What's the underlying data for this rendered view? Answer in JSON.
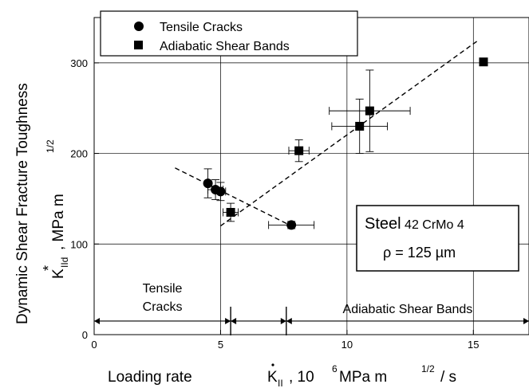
{
  "chart_data": {
    "type": "scatter",
    "xlabel_parts": [
      "Loading rate",
      "K",
      "II",
      ",  10",
      "6",
      " MPa m",
      "1/2",
      " / s"
    ],
    "ylabel_parts": [
      "Dynamic Shear Fracture Toughness",
      "K",
      "*",
      "IId",
      " ,   MPa m",
      "1/2"
    ],
    "xlim": [
      0,
      17.2
    ],
    "ylim": [
      0,
      350
    ],
    "x_ticks": [
      0,
      5,
      10,
      15
    ],
    "x_tick_labels": [
      "0",
      "5",
      "10",
      "15"
    ],
    "y_ticks": [
      0,
      100,
      200,
      300
    ],
    "y_tick_labels": [
      "0",
      "100",
      "200",
      "300"
    ],
    "grid": true,
    "legend_position": "top-left",
    "series": [
      {
        "name": "Tensile Cracks",
        "marker": "circle",
        "points": [
          {
            "x": 4.5,
            "y": 167,
            "yerr": 16
          },
          {
            "x": 4.8,
            "y": 160,
            "xerr": 0.3,
            "yerr": 11
          },
          {
            "x": 5.0,
            "y": 158,
            "xerr": 0.2,
            "yerr": 10
          },
          {
            "x": 7.8,
            "y": 121,
            "xerr": 0.9,
            "yerr": 4
          }
        ]
      },
      {
        "name": "Adiabatic Shear Bands",
        "marker": "square",
        "points": [
          {
            "x": 5.4,
            "y": 135,
            "xerr": 0.3,
            "yerr": 10
          },
          {
            "x": 8.1,
            "y": 203,
            "xerr": 0.4,
            "yerr": 12
          },
          {
            "x": 10.5,
            "y": 230,
            "xerr": 1.1,
            "yerr": 30
          },
          {
            "x": 10.9,
            "y": 247,
            "xerr": 1.6,
            "yerr": 45
          },
          {
            "x": 15.4,
            "y": 301
          }
        ]
      }
    ],
    "fit_lines": [
      {
        "from": [
          3.2,
          184
        ],
        "to": [
          7.8,
          120
        ]
      },
      {
        "from": [
          5.0,
          120
        ],
        "to": [
          15.2,
          325
        ]
      }
    ],
    "annotation": {
      "line1_main": "Steel",
      "line1_small": " 42 CrMo 4",
      "line2": "ρ = 125 µm"
    },
    "regions": [
      {
        "label_lines": [
          "Tensile",
          "Cracks"
        ],
        "from": 0,
        "to": 5.4
      },
      {
        "label_lines": [],
        "from": 5.4,
        "to": 7.6
      },
      {
        "label_lines": [
          "Adiabatic Shear Bands"
        ],
        "from": 7.6,
        "to": 17.2
      }
    ],
    "region_y": 15
  }
}
